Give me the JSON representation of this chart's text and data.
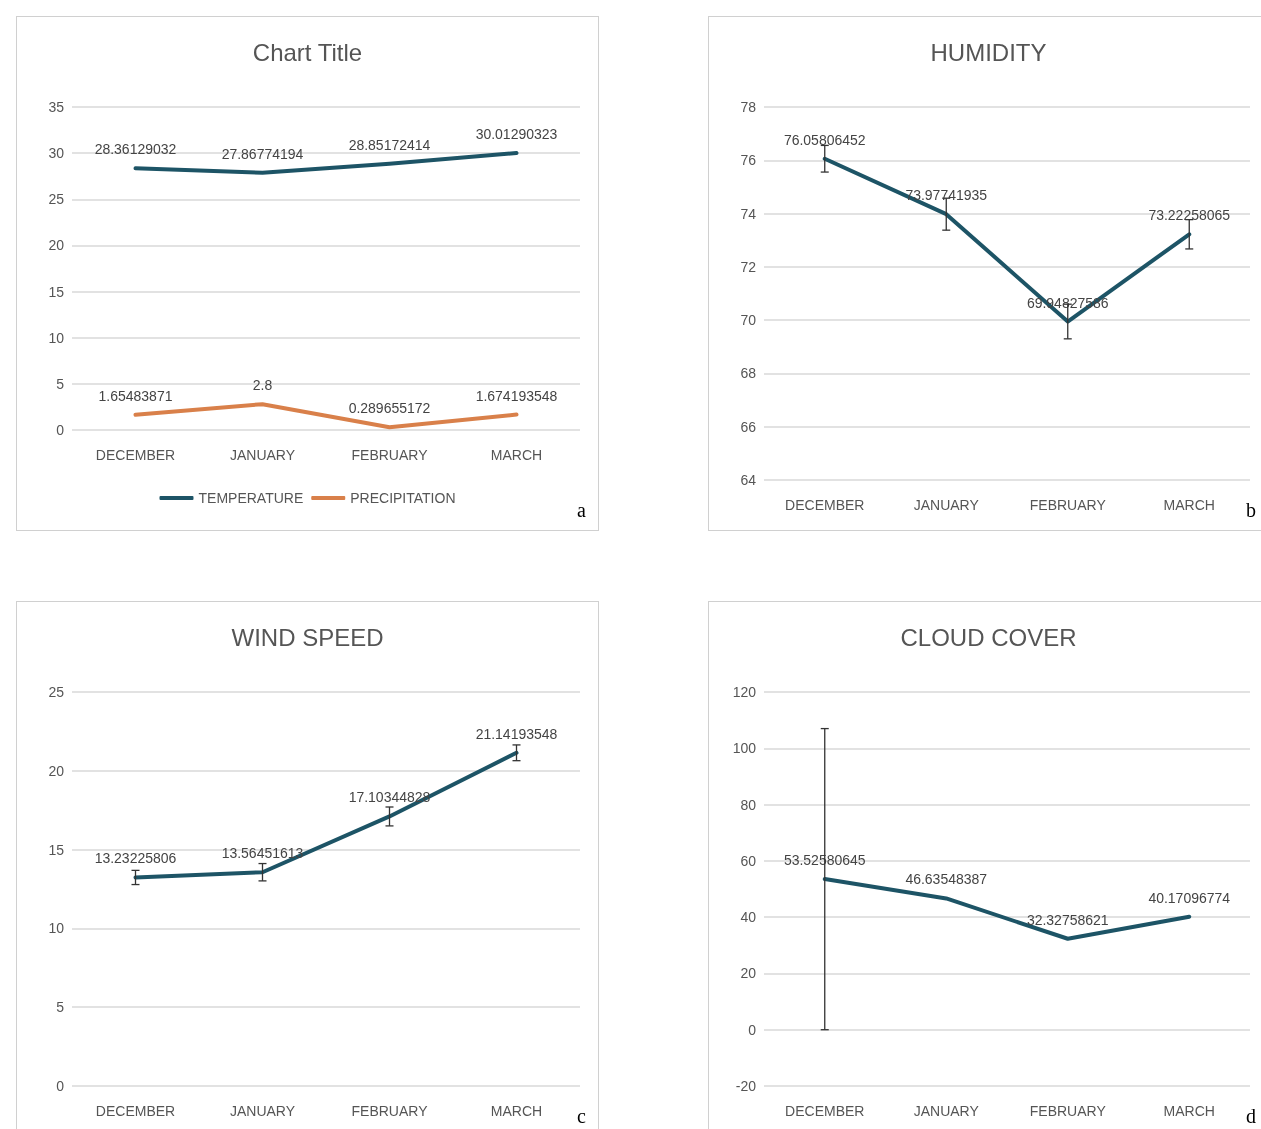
{
  "chart_data": [
    {
      "type": "line",
      "title": "Chart Title",
      "categories": [
        "DECEMBER",
        "JANUARY",
        "FEBRUARY",
        "MARCH"
      ],
      "series": [
        {
          "name": "TEMPERATURE",
          "color": "#1d5466",
          "values": [
            28.36129032,
            27.86774194,
            28.85172414,
            30.01290323
          ]
        },
        {
          "name": "PRECIPITATION",
          "color": "#d9804a",
          "values": [
            1.65483871,
            2.8,
            0.289655172,
            1.674193548
          ]
        }
      ],
      "ylim": [
        0,
        35
      ],
      "yticks": [
        0,
        5,
        10,
        15,
        20,
        25,
        30,
        35
      ],
      "grid": "y",
      "legend": "bottom",
      "data_labels": true,
      "marker": "none",
      "annotations": [
        "a"
      ]
    },
    {
      "type": "line",
      "title": "HUMIDITY",
      "categories": [
        "DECEMBER",
        "JANUARY",
        "FEBRUARY",
        "MARCH"
      ],
      "series": [
        {
          "color": "#1d5466",
          "values": [
            76.05806452,
            73.97741935,
            69.94827586,
            73.22258065
          ],
          "errors": [
            0.5,
            0.6,
            0.65,
            0.55
          ]
        }
      ],
      "ylim": [
        64,
        78
      ],
      "yticks": [
        64,
        66,
        68,
        70,
        72,
        74,
        76,
        78
      ],
      "grid": "y",
      "data_labels": true,
      "marker": "none",
      "annotations": [
        "b"
      ]
    },
    {
      "type": "line",
      "title": "WIND SPEED",
      "categories": [
        "DECEMBER",
        "JANUARY",
        "FEBRUARY",
        "MARCH"
      ],
      "series": [
        {
          "color": "#1d5466",
          "values": [
            13.23225806,
            13.56451613,
            17.10344828,
            21.14193548
          ],
          "errors": [
            0.45,
            0.55,
            0.6,
            0.5
          ]
        }
      ],
      "ylim": [
        0,
        25
      ],
      "yticks": [
        0,
        5,
        10,
        15,
        20,
        25
      ],
      "grid": "y",
      "data_labels": true,
      "marker": "none",
      "annotations": [
        "c"
      ]
    },
    {
      "type": "line",
      "title": "CLOUD COVER",
      "categories": [
        "DECEMBER",
        "JANUARY",
        "FEBRUARY",
        "MARCH"
      ],
      "series": [
        {
          "color": "#1d5466",
          "values": [
            53.52580645,
            46.63548387,
            32.32758621,
            40.17096774
          ],
          "errors": [
            [
              0,
              107
            ],
            null,
            null,
            null
          ]
        }
      ],
      "ylim": [
        -20,
        120
      ],
      "yticks": [
        -20,
        0,
        20,
        40,
        60,
        80,
        100,
        120
      ],
      "grid": "y",
      "data_labels": true,
      "marker": "none",
      "annotations": [
        "d"
      ]
    }
  ]
}
